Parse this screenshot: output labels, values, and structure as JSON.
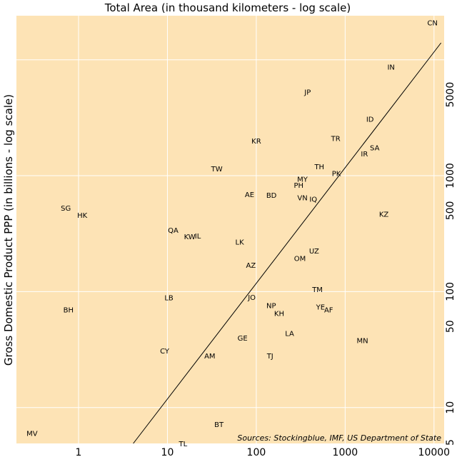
{
  "chart_data": {
    "type": "scatter",
    "title": "Total Area (in thousand kilometers - log scale)",
    "ylabel": "Gross Domestic Product PPP (in billions - log scale)",
    "source": "Sources: Stockingblue, IMF, US Department of State",
    "x_scale": "log",
    "y_scale": "log",
    "xlim": [
      0.2,
      13000
    ],
    "ylim": [
      4.9,
      24000
    ],
    "x_ticks": [
      1,
      10,
      100,
      1000,
      10000
    ],
    "x_tick_labels": [
      "1",
      "10",
      "100",
      "1000",
      "10000"
    ],
    "y_ticks": [
      5,
      10,
      50,
      100,
      500,
      1000,
      5000
    ],
    "y_tick_labels": [
      "5",
      "10",
      "50",
      "100",
      "500",
      "1000",
      "5000"
    ],
    "background_color": "#fde3b5",
    "grid": true,
    "points": [
      {
        "label": "CN",
        "x": 9600,
        "y": 21000
      },
      {
        "label": "IN",
        "x": 3287,
        "y": 8700
      },
      {
        "label": "JP",
        "x": 378,
        "y": 5300
      },
      {
        "label": "ID",
        "x": 1905,
        "y": 3100
      },
      {
        "label": "TR",
        "x": 784,
        "y": 2100
      },
      {
        "label": "KR",
        "x": 100,
        "y": 2000
      },
      {
        "label": "SA",
        "x": 2150,
        "y": 1750
      },
      {
        "label": "IR",
        "x": 1648,
        "y": 1550
      },
      {
        "label": "TH",
        "x": 513,
        "y": 1200
      },
      {
        "label": "TW",
        "x": 36,
        "y": 1150
      },
      {
        "label": "PK",
        "x": 796,
        "y": 1050
      },
      {
        "label": "MY",
        "x": 330,
        "y": 940
      },
      {
        "label": "PH",
        "x": 300,
        "y": 830
      },
      {
        "label": "AE",
        "x": 84,
        "y": 690
      },
      {
        "label": "BD",
        "x": 148,
        "y": 680
      },
      {
        "label": "VN",
        "x": 331,
        "y": 650
      },
      {
        "label": "IQ",
        "x": 438,
        "y": 630
      },
      {
        "label": "SG",
        "x": 0.72,
        "y": 530
      },
      {
        "label": "KZ",
        "x": 2725,
        "y": 470
      },
      {
        "label": "HK",
        "x": 1.1,
        "y": 460
      },
      {
        "label": "QA",
        "x": 11.6,
        "y": 340
      },
      {
        "label": "KW",
        "x": 17.8,
        "y": 300
      },
      {
        "label": "IL",
        "x": 22,
        "y": 305
      },
      {
        "label": "LK",
        "x": 65,
        "y": 270
      },
      {
        "label": "UZ",
        "x": 447,
        "y": 225
      },
      {
        "label": "OM",
        "x": 310,
        "y": 195
      },
      {
        "label": "AZ",
        "x": 87,
        "y": 170
      },
      {
        "label": "TM",
        "x": 488,
        "y": 105
      },
      {
        "label": "LB",
        "x": 10.4,
        "y": 89
      },
      {
        "label": "JO",
        "x": 89,
        "y": 90
      },
      {
        "label": "NP",
        "x": 147,
        "y": 76
      },
      {
        "label": "YE",
        "x": 528,
        "y": 74
      },
      {
        "label": "BH",
        "x": 0.77,
        "y": 70
      },
      {
        "label": "AF",
        "x": 652,
        "y": 70
      },
      {
        "label": "KH",
        "x": 181,
        "y": 65
      },
      {
        "label": "LA",
        "x": 237,
        "y": 44
      },
      {
        "label": "GE",
        "x": 70,
        "y": 40
      },
      {
        "label": "MN",
        "x": 1564,
        "y": 38
      },
      {
        "label": "CY",
        "x": 9.3,
        "y": 31
      },
      {
        "label": "AM",
        "x": 30,
        "y": 28
      },
      {
        "label": "TJ",
        "x": 143,
        "y": 28
      },
      {
        "label": "BT",
        "x": 38,
        "y": 7.2
      },
      {
        "label": "MV",
        "x": 0.3,
        "y": 6.0
      },
      {
        "label": "TL",
        "x": 15,
        "y": 4.9
      }
    ],
    "trend_line": {
      "x": [
        4.13,
        12000
      ],
      "y": [
        4.9,
        14000
      ]
    }
  }
}
